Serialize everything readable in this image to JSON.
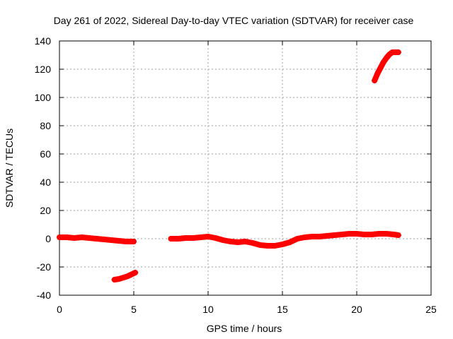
{
  "chart_data": {
    "type": "scatter",
    "title": "Day 261 of 2022, Sidereal Day-to-day VTEC variation (SDTVAR) for receiver case",
    "xlabel": "GPS time / hours",
    "ylabel": "SDTVAR / TECUs",
    "xlim": [
      0,
      25
    ],
    "ylim": [
      -40,
      140
    ],
    "xticks": [
      0,
      5,
      10,
      15,
      20,
      25
    ],
    "yticks": [
      -40,
      -20,
      0,
      20,
      40,
      60,
      80,
      100,
      120,
      140
    ],
    "grid": true,
    "legend": "none",
    "marker": "+",
    "series_color": "#ff0000",
    "series": [
      {
        "name": "segment-1",
        "x": [
          0.0,
          0.5,
          1.0,
          1.5,
          2.0,
          2.5,
          3.0,
          3.5,
          4.0,
          4.5,
          5.0
        ],
        "y": [
          1.0,
          1.0,
          0.5,
          1.0,
          0.5,
          0.0,
          -0.5,
          -1.0,
          -1.5,
          -2.0,
          -2.0
        ]
      },
      {
        "name": "segment-2",
        "x": [
          3.7,
          4.0,
          4.3,
          4.6,
          4.9,
          5.1
        ],
        "y": [
          -29.0,
          -28.5,
          -27.5,
          -26.5,
          -25.0,
          -24.0
        ]
      },
      {
        "name": "segment-3",
        "x": [
          7.5,
          8.0,
          8.5,
          9.0,
          9.5,
          10.0,
          10.5,
          11.0,
          11.5,
          12.0,
          12.5,
          13.0,
          13.5,
          14.0,
          14.5,
          15.0,
          15.5,
          16.0,
          16.5,
          17.0,
          17.5,
          18.0,
          18.5,
          19.0,
          19.5,
          20.0,
          20.5,
          21.0,
          21.5,
          22.0,
          22.5,
          22.8
        ],
        "y": [
          0.0,
          0.0,
          0.5,
          0.5,
          1.0,
          1.5,
          0.5,
          -1.0,
          -2.0,
          -2.5,
          -2.0,
          -3.0,
          -4.5,
          -5.0,
          -5.0,
          -4.0,
          -2.5,
          0.0,
          1.0,
          1.5,
          1.5,
          2.0,
          2.5,
          3.0,
          3.5,
          3.5,
          3.0,
          3.0,
          3.5,
          3.5,
          3.0,
          2.5
        ]
      },
      {
        "name": "segment-4",
        "x": [
          21.2,
          21.4,
          21.6,
          21.8,
          22.0,
          22.2,
          22.4,
          22.6,
          22.8
        ],
        "y": [
          112.0,
          117.0,
          121.0,
          125.0,
          128.0,
          130.5,
          132.0,
          132.0,
          132.0
        ]
      }
    ]
  }
}
